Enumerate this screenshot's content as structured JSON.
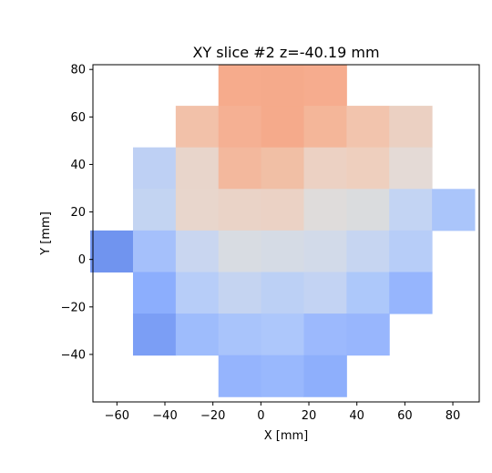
{
  "chart_data": {
    "type": "heatmap",
    "title": "XY slice #2 z=-40.19 mm",
    "xlabel": "X [mm]",
    "ylabel": "Y [mm]",
    "xlim": [
      -70,
      91
    ],
    "ylim": [
      -60,
      82
    ],
    "grid": false,
    "legend": "none",
    "xticks": [
      -60,
      -40,
      -20,
      0,
      20,
      40,
      60,
      80
    ],
    "yticks": [
      -40,
      -20,
      0,
      20,
      40,
      60,
      80
    ],
    "xtick_labels": [
      "−60",
      "−40",
      "−20",
      "0",
      "20",
      "40",
      "60",
      "80"
    ],
    "ytick_labels": [
      "−40",
      "−20",
      "0",
      "20",
      "40",
      "60",
      "80"
    ],
    "cell_size": [
      17.8,
      17.5
    ],
    "cells": [
      {
        "x": -17.7,
        "y": 64.7,
        "color": "#f6ab8c"
      },
      {
        "x": 0.1,
        "y": 64.7,
        "color": "#f5aa8b"
      },
      {
        "x": 17.9,
        "y": 64.7,
        "color": "#f6ac8e"
      },
      {
        "x": -35.5,
        "y": 47.2,
        "color": "#f2c1a9"
      },
      {
        "x": -17.7,
        "y": 47.2,
        "color": "#f5b093"
      },
      {
        "x": 0.1,
        "y": 47.2,
        "color": "#f5aa8b"
      },
      {
        "x": 17.9,
        "y": 47.2,
        "color": "#f4b699"
      },
      {
        "x": 35.7,
        "y": 47.2,
        "color": "#f2c4ad"
      },
      {
        "x": 53.5,
        "y": 47.2,
        "color": "#ebd0c2"
      },
      {
        "x": -53.3,
        "y": 29.7,
        "color": "#bed0f4"
      },
      {
        "x": -35.5,
        "y": 29.7,
        "color": "#e8d5cb"
      },
      {
        "x": -17.7,
        "y": 29.7,
        "color": "#f3b89d"
      },
      {
        "x": 0.1,
        "y": 29.7,
        "color": "#f1bfa5"
      },
      {
        "x": 17.9,
        "y": 29.7,
        "color": "#ecd1c3"
      },
      {
        "x": 35.7,
        "y": 29.7,
        "color": "#eecfbe"
      },
      {
        "x": 53.5,
        "y": 29.7,
        "color": "#e4dad6"
      },
      {
        "x": -53.3,
        "y": 12.2,
        "color": "#c3d4f2"
      },
      {
        "x": -35.5,
        "y": 12.2,
        "color": "#e8d6cc"
      },
      {
        "x": -17.7,
        "y": 12.2,
        "color": "#ead3c7"
      },
      {
        "x": 0.1,
        "y": 12.2,
        "color": "#ebd2c5"
      },
      {
        "x": 17.9,
        "y": 12.2,
        "color": "#dfdcdb"
      },
      {
        "x": 35.7,
        "y": 12.2,
        "color": "#dadcde"
      },
      {
        "x": 53.5,
        "y": 12.2,
        "color": "#c3d4f3"
      },
      {
        "x": 71.3,
        "y": 12.2,
        "color": "#aac5fa"
      },
      {
        "x": -71.1,
        "y": -5.3,
        "color": "#7094ef"
      },
      {
        "x": -53.3,
        "y": -5.3,
        "color": "#a5c0fb"
      },
      {
        "x": -35.5,
        "y": -5.3,
        "color": "#c9d6f0"
      },
      {
        "x": -17.7,
        "y": -5.3,
        "color": "#d8dce2"
      },
      {
        "x": 0.1,
        "y": -5.3,
        "color": "#d5dbe5"
      },
      {
        "x": 17.9,
        "y": -5.3,
        "color": "#d2dae9"
      },
      {
        "x": 35.7,
        "y": -5.3,
        "color": "#c6d5f1"
      },
      {
        "x": 53.5,
        "y": -5.3,
        "color": "#b7cdf8"
      },
      {
        "x": -53.3,
        "y": -22.8,
        "color": "#8caefd"
      },
      {
        "x": -35.5,
        "y": -22.8,
        "color": "#b7cdf8"
      },
      {
        "x": -17.7,
        "y": -22.8,
        "color": "#c5d4f1"
      },
      {
        "x": 0.1,
        "y": -22.8,
        "color": "#bcd0f5"
      },
      {
        "x": 17.9,
        "y": -22.8,
        "color": "#c3d3f3"
      },
      {
        "x": 35.7,
        "y": -22.8,
        "color": "#adc8fa"
      },
      {
        "x": 53.5,
        "y": -22.8,
        "color": "#96b5fd"
      },
      {
        "x": -53.3,
        "y": -40.3,
        "color": "#7b9ef5"
      },
      {
        "x": -35.5,
        "y": -40.3,
        "color": "#9ebcfc"
      },
      {
        "x": -17.7,
        "y": -40.3,
        "color": "#a9c4fb"
      },
      {
        "x": 0.1,
        "y": -40.3,
        "color": "#adc7fb"
      },
      {
        "x": 17.9,
        "y": -40.3,
        "color": "#9cb9fd"
      },
      {
        "x": 35.7,
        "y": -40.3,
        "color": "#98b6fd"
      },
      {
        "x": -17.7,
        "y": -57.8,
        "color": "#95b4fd"
      },
      {
        "x": 0.1,
        "y": -57.8,
        "color": "#99b8fd"
      },
      {
        "x": 17.9,
        "y": -57.8,
        "color": "#8eaffc"
      }
    ]
  }
}
